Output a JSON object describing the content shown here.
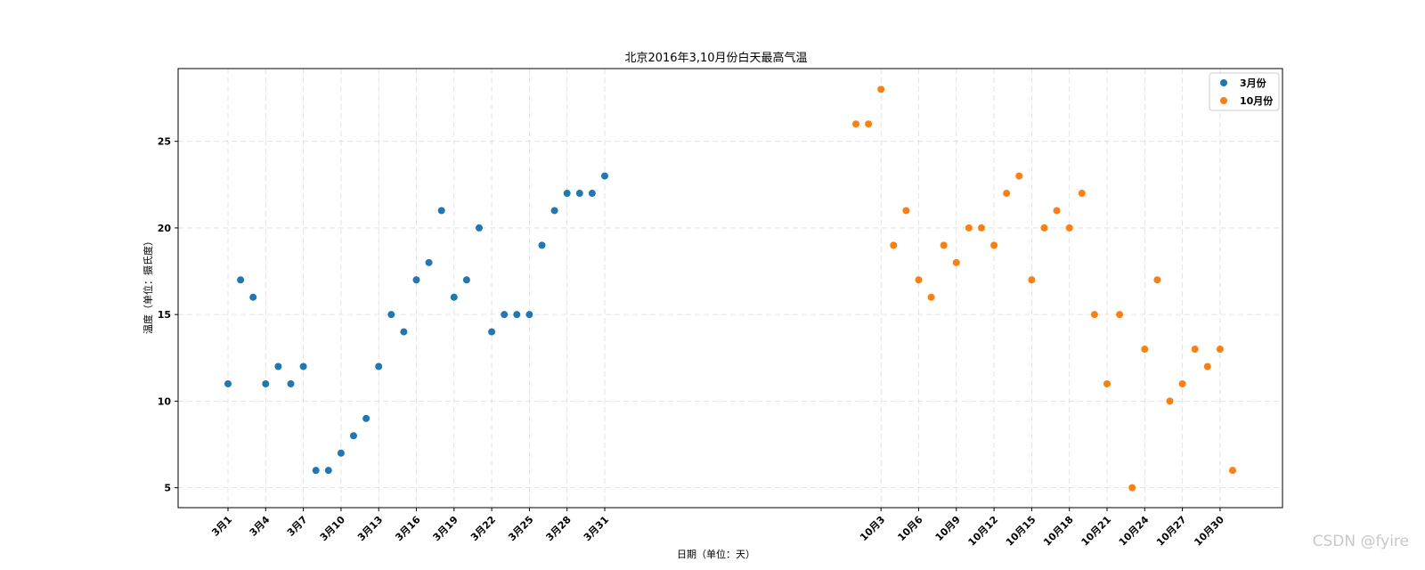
{
  "chart_data": {
    "type": "scatter",
    "title": "北京2016年3,10月份白天最高气温",
    "xlabel": "日期（单位：天）",
    "ylabel": "温度（单位：摄氏度）",
    "yticks": [
      5,
      10,
      15,
      20,
      25
    ],
    "xticks": [
      "3月1",
      "3月4",
      "3月7",
      "3月10",
      "3月13",
      "3月16",
      "3月19",
      "3月22",
      "3月25",
      "3月28",
      "3月31",
      "10月3",
      "10月6",
      "10月9",
      "10月12",
      "10月15",
      "10月18",
      "10月21",
      "10月24",
      "10月27",
      "10月30"
    ],
    "grid": true,
    "legend_position": "top-right",
    "series": [
      {
        "name": "3月份",
        "color": "#1f77b4",
        "x": [
          "3月1",
          "3月2",
          "3月3",
          "3月4",
          "3月5",
          "3月6",
          "3月7",
          "3月8",
          "3月9",
          "3月10",
          "3月11",
          "3月12",
          "3月13",
          "3月14",
          "3月15",
          "3月16",
          "3月17",
          "3月18",
          "3月19",
          "3月20",
          "3月21",
          "3月22",
          "3月23",
          "3月24",
          "3月25",
          "3月26",
          "3月27",
          "3月28",
          "3月29",
          "3月30",
          "3月31"
        ],
        "values": [
          11,
          17,
          16,
          11,
          12,
          11,
          12,
          6,
          6,
          7,
          8,
          9,
          12,
          15,
          14,
          17,
          18,
          21,
          16,
          17,
          20,
          14,
          15,
          15,
          15,
          19,
          21,
          22,
          22,
          22,
          23
        ]
      },
      {
        "name": "10月份",
        "color": "#ff7f0e",
        "x": [
          "10月1",
          "10月2",
          "10月3",
          "10月4",
          "10月5",
          "10月6",
          "10月7",
          "10月8",
          "10月9",
          "10月10",
          "10月11",
          "10月12",
          "10月13",
          "10月14",
          "10月15",
          "10月16",
          "10月17",
          "10月18",
          "10月19",
          "10月20",
          "10月21",
          "10月22",
          "10月23",
          "10月24",
          "10月25",
          "10月26",
          "10月27",
          "10月28",
          "10月29",
          "10月30",
          "10月31"
        ],
        "values": [
          26,
          26,
          28,
          19,
          21,
          17,
          16,
          19,
          18,
          20,
          20,
          19,
          22,
          23,
          17,
          20,
          21,
          20,
          22,
          15,
          11,
          15,
          5,
          13,
          17,
          10,
          11,
          13,
          12,
          13,
          6
        ]
      }
    ]
  },
  "watermark": "CSDN @fyire"
}
